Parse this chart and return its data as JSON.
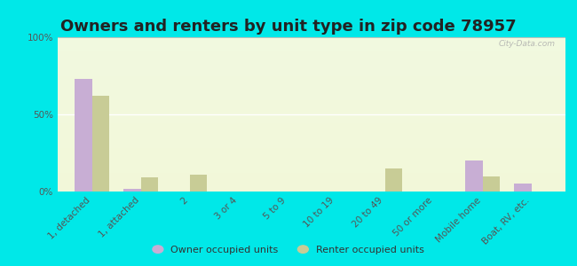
{
  "title": "Owners and renters by unit type in zip code 78957",
  "categories": [
    "1, detached",
    "1, attached",
    "2",
    "3 or 4",
    "5 to 9",
    "10 to 19",
    "20 to 49",
    "50 or more",
    "Mobile home",
    "Boat, RV, etc."
  ],
  "owner_values": [
    73,
    2,
    0,
    0,
    0,
    0,
    0,
    0,
    20,
    5
  ],
  "renter_values": [
    62,
    9,
    11,
    0,
    0,
    0,
    15,
    0,
    10,
    0
  ],
  "owner_color": "#c8aed4",
  "renter_color": "#c8cc96",
  "outer_bg": "#00e8e8",
  "ylim": [
    0,
    100
  ],
  "yticks": [
    0,
    50,
    100
  ],
  "ytick_labels": [
    "0%",
    "50%",
    "100%"
  ],
  "bar_width": 0.35,
  "legend_owner": "Owner occupied units",
  "legend_renter": "Renter occupied units",
  "watermark": "City-Data.com",
  "title_fontsize": 13,
  "tick_fontsize": 7.5
}
